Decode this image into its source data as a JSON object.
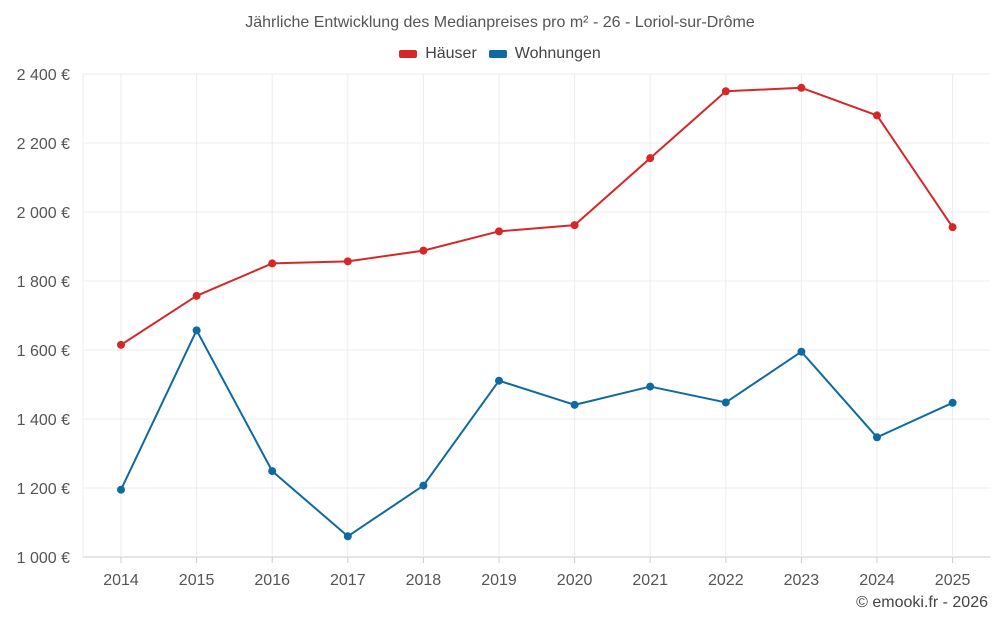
{
  "chart_data": {
    "type": "line",
    "title": "Jährliche Entwicklung des Medianpreises pro m² - 26 - Loriol-sur-Drôme",
    "xlabel": "",
    "ylabel": "",
    "x": [
      "2014",
      "2015",
      "2016",
      "2017",
      "2018",
      "2019",
      "2020",
      "2021",
      "2022",
      "2023",
      "2024",
      "2025"
    ],
    "ylim": [
      1000,
      2400
    ],
    "yticks": [
      1000,
      1200,
      1400,
      1600,
      1800,
      2000,
      2200,
      2400
    ],
    "ytick_labels": [
      "1 000 €",
      "1 200 €",
      "1 400 €",
      "1 600 €",
      "1 800 €",
      "2 000 €",
      "2 200 €",
      "2 400 €"
    ],
    "grid": true,
    "legend_position": "top-center",
    "series": [
      {
        "name": "Häuser",
        "color": "#d62728",
        "values": [
          1615,
          1757,
          1851,
          1857,
          1888,
          1944,
          1962,
          2156,
          2350,
          2360,
          2280,
          1956
        ]
      },
      {
        "name": "Wohnungen",
        "color": "#0e6aa0",
        "values": [
          1195,
          1657,
          1249,
          1060,
          1207,
          1511,
          1441,
          1494,
          1448,
          1595,
          1347,
          1447
        ]
      }
    ],
    "credit": "© emooki.fr - 2026"
  }
}
